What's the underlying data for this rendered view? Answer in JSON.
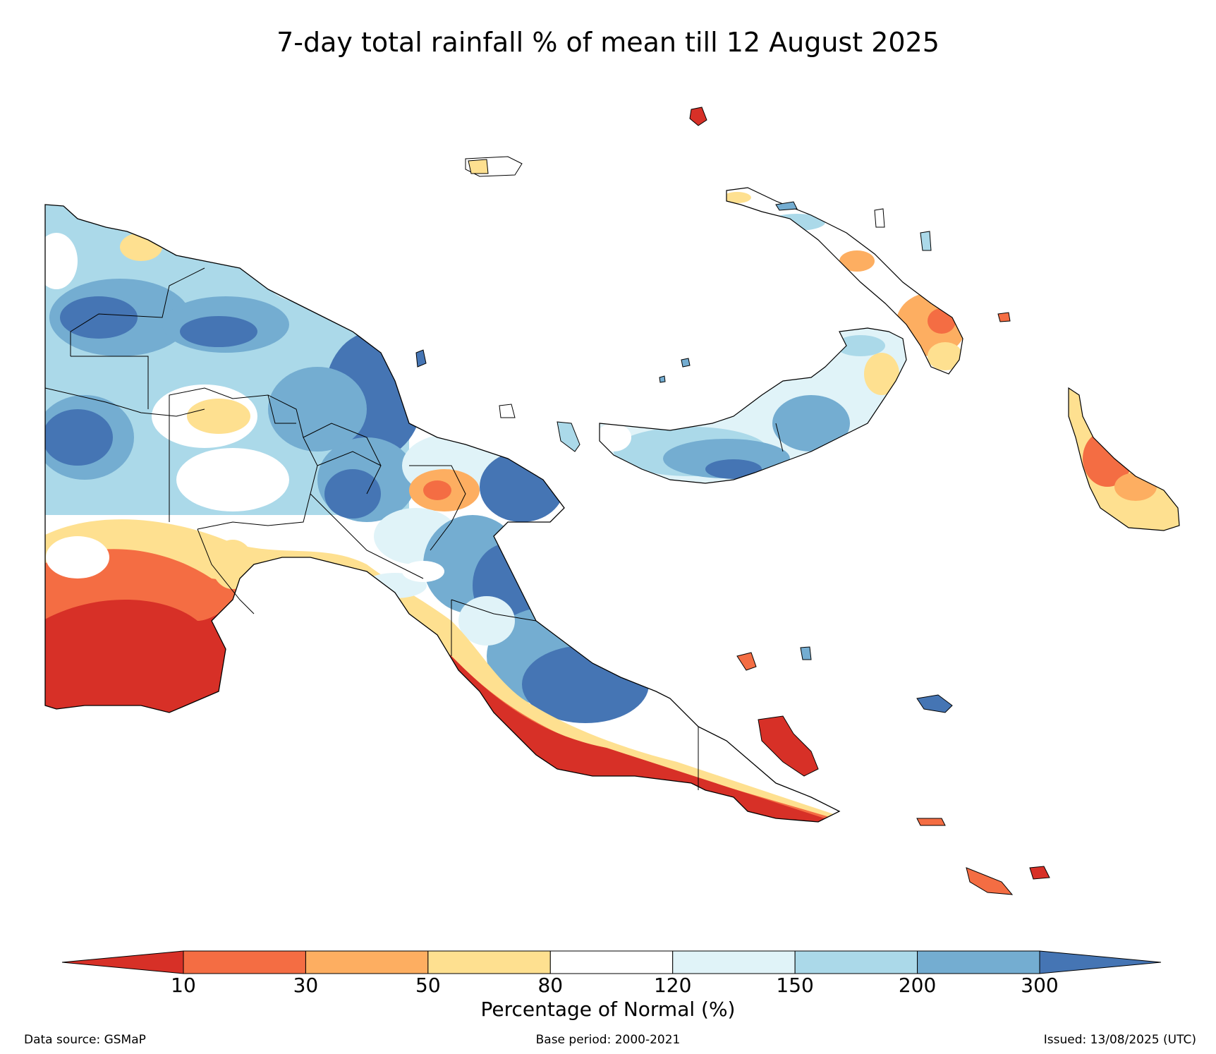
{
  "title": "7-day total rainfall % of mean till 12 August 2025",
  "colorbar": {
    "label": "Percentage of Normal (%)",
    "ticks": [
      "10",
      "30",
      "50",
      "80",
      "120",
      "150",
      "200",
      "300"
    ],
    "colors": [
      "#d73027",
      "#f46d43",
      "#fdae61",
      "#fee090",
      "#ffffff",
      "#e0f3f8",
      "#abd9e9",
      "#74add1",
      "#4575b4"
    ],
    "extend": "both"
  },
  "footer": {
    "source": "Data source: GSMaP",
    "base_period": "Base period: 2000-2021",
    "issued": "Issued: 13/08/2025 (UTC)"
  }
}
